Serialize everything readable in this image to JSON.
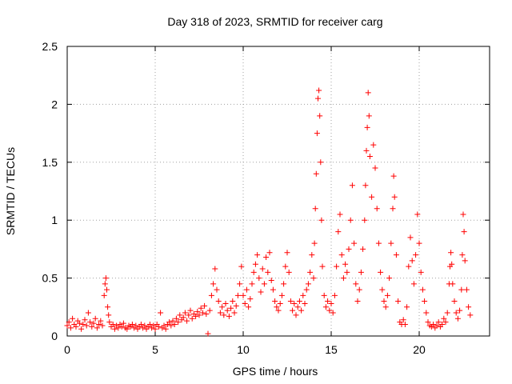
{
  "chart_data": {
    "type": "scatter",
    "title": "Day 318 of 2023, SRMTID for receiver carg",
    "xlabel": "GPS time / hours",
    "ylabel": "SRMTID / TECUs",
    "xlim": [
      0,
      24
    ],
    "ylim": [
      0,
      2.5
    ],
    "xticks": [
      0,
      5,
      10,
      15,
      20
    ],
    "yticks": [
      0,
      0.5,
      1,
      1.5,
      2,
      2.5
    ],
    "xtick_labels": [
      "0",
      "5",
      "10",
      "15",
      "20"
    ],
    "ytick_labels": [
      "0",
      "0.5",
      "1",
      "1.5",
      "2",
      "2.5"
    ],
    "grid": true,
    "marker": "+",
    "color": "#ff0000",
    "series": [
      {
        "name": "carg",
        "points": [
          [
            0.0,
            0.09
          ],
          [
            0.1,
            0.12
          ],
          [
            0.2,
            0.07
          ],
          [
            0.3,
            0.15
          ],
          [
            0.4,
            0.1
          ],
          [
            0.5,
            0.08
          ],
          [
            0.6,
            0.13
          ],
          [
            0.7,
            0.11
          ],
          [
            0.8,
            0.06
          ],
          [
            0.9,
            0.1
          ],
          [
            1.0,
            0.14
          ],
          [
            1.1,
            0.09
          ],
          [
            1.2,
            0.2
          ],
          [
            1.3,
            0.12
          ],
          [
            1.4,
            0.08
          ],
          [
            1.5,
            0.11
          ],
          [
            1.6,
            0.15
          ],
          [
            1.7,
            0.07
          ],
          [
            1.8,
            0.1
          ],
          [
            1.9,
            0.13
          ],
          [
            2.0,
            0.09
          ],
          [
            2.1,
            0.35
          ],
          [
            2.15,
            0.45
          ],
          [
            2.2,
            0.5
          ],
          [
            2.25,
            0.4
          ],
          [
            2.3,
            0.25
          ],
          [
            2.35,
            0.18
          ],
          [
            2.4,
            0.12
          ],
          [
            2.5,
            0.08
          ],
          [
            2.6,
            0.1
          ],
          [
            2.7,
            0.06
          ],
          [
            2.8,
            0.09
          ],
          [
            2.9,
            0.07
          ],
          [
            3.0,
            0.1
          ],
          [
            3.1,
            0.08
          ],
          [
            3.2,
            0.11
          ],
          [
            3.3,
            0.07
          ],
          [
            3.4,
            0.06
          ],
          [
            3.5,
            0.09
          ],
          [
            3.6,
            0.08
          ],
          [
            3.7,
            0.1
          ],
          [
            3.8,
            0.07
          ],
          [
            3.9,
            0.09
          ],
          [
            4.0,
            0.06
          ],
          [
            4.1,
            0.08
          ],
          [
            4.2,
            0.1
          ],
          [
            4.3,
            0.07
          ],
          [
            4.4,
            0.09
          ],
          [
            4.5,
            0.06
          ],
          [
            4.6,
            0.08
          ],
          [
            4.7,
            0.1
          ],
          [
            4.8,
            0.07
          ],
          [
            4.9,
            0.09
          ],
          [
            5.0,
            0.06
          ],
          [
            5.1,
            0.1
          ],
          [
            5.2,
            0.08
          ],
          [
            5.3,
            0.2
          ],
          [
            5.4,
            0.07
          ],
          [
            5.5,
            0.09
          ],
          [
            5.6,
            0.06
          ],
          [
            5.7,
            0.1
          ],
          [
            5.8,
            0.12
          ],
          [
            5.9,
            0.09
          ],
          [
            6.0,
            0.13
          ],
          [
            6.1,
            0.1
          ],
          [
            6.2,
            0.15
          ],
          [
            6.3,
            0.12
          ],
          [
            6.4,
            0.18
          ],
          [
            6.5,
            0.14
          ],
          [
            6.6,
            0.16
          ],
          [
            6.7,
            0.2
          ],
          [
            6.8,
            0.13
          ],
          [
            6.9,
            0.18
          ],
          [
            7.0,
            0.22
          ],
          [
            7.1,
            0.15
          ],
          [
            7.2,
            0.19
          ],
          [
            7.3,
            0.17
          ],
          [
            7.4,
            0.21
          ],
          [
            7.5,
            0.18
          ],
          [
            7.6,
            0.24
          ],
          [
            7.7,
            0.2
          ],
          [
            7.8,
            0.26
          ],
          [
            7.9,
            0.19
          ],
          [
            8.0,
            0.02
          ],
          [
            8.1,
            0.22
          ],
          [
            8.2,
            0.35
          ],
          [
            8.3,
            0.45
          ],
          [
            8.4,
            0.58
          ],
          [
            8.5,
            0.4
          ],
          [
            8.6,
            0.3
          ],
          [
            8.7,
            0.2
          ],
          [
            8.8,
            0.25
          ],
          [
            8.9,
            0.18
          ],
          [
            9.0,
            0.28
          ],
          [
            9.1,
            0.22
          ],
          [
            9.2,
            0.17
          ],
          [
            9.3,
            0.24
          ],
          [
            9.4,
            0.3
          ],
          [
            9.5,
            0.2
          ],
          [
            9.6,
            0.26
          ],
          [
            9.7,
            0.35
          ],
          [
            9.8,
            0.45
          ],
          [
            9.9,
            0.6
          ],
          [
            10.0,
            0.35
          ],
          [
            10.1,
            0.28
          ],
          [
            10.2,
            0.4
          ],
          [
            10.3,
            0.25
          ],
          [
            10.4,
            0.32
          ],
          [
            10.5,
            0.45
          ],
          [
            10.6,
            0.55
          ],
          [
            10.7,
            0.62
          ],
          [
            10.8,
            0.7
          ],
          [
            10.9,
            0.5
          ],
          [
            11.0,
            0.38
          ],
          [
            11.1,
            0.58
          ],
          [
            11.2,
            0.45
          ],
          [
            11.3,
            0.68
          ],
          [
            11.4,
            0.55
          ],
          [
            11.5,
            0.72
          ],
          [
            11.6,
            0.48
          ],
          [
            11.7,
            0.4
          ],
          [
            11.8,
            0.3
          ],
          [
            11.9,
            0.25
          ],
          [
            12.0,
            0.22
          ],
          [
            12.1,
            0.28
          ],
          [
            12.2,
            0.35
          ],
          [
            12.3,
            0.45
          ],
          [
            12.4,
            0.6
          ],
          [
            12.5,
            0.72
          ],
          [
            12.6,
            0.55
          ],
          [
            12.7,
            0.3
          ],
          [
            12.8,
            0.22
          ],
          [
            12.9,
            0.28
          ],
          [
            13.0,
            0.18
          ],
          [
            13.1,
            0.25
          ],
          [
            13.2,
            0.3
          ],
          [
            13.3,
            0.22
          ],
          [
            13.4,
            0.35
          ],
          [
            13.5,
            0.28
          ],
          [
            13.6,
            0.4
          ],
          [
            13.7,
            0.45
          ],
          [
            13.8,
            0.55
          ],
          [
            13.9,
            0.7
          ],
          [
            14.0,
            0.5
          ],
          [
            14.05,
            0.8
          ],
          [
            14.1,
            1.1
          ],
          [
            14.15,
            1.4
          ],
          [
            14.2,
            1.75
          ],
          [
            14.25,
            2.05
          ],
          [
            14.3,
            2.12
          ],
          [
            14.35,
            1.9
          ],
          [
            14.4,
            1.5
          ],
          [
            14.45,
            1.0
          ],
          [
            14.5,
            0.6
          ],
          [
            14.6,
            0.35
          ],
          [
            14.7,
            0.25
          ],
          [
            14.8,
            0.3
          ],
          [
            14.9,
            0.22
          ],
          [
            15.0,
            0.28
          ],
          [
            15.1,
            0.2
          ],
          [
            15.2,
            0.35
          ],
          [
            15.3,
            0.6
          ],
          [
            15.4,
            0.9
          ],
          [
            15.5,
            1.05
          ],
          [
            15.6,
            0.7
          ],
          [
            15.7,
            0.5
          ],
          [
            15.8,
            0.62
          ],
          [
            15.9,
            0.55
          ],
          [
            16.0,
            0.75
          ],
          [
            16.1,
            1.0
          ],
          [
            16.2,
            1.3
          ],
          [
            16.3,
            0.8
          ],
          [
            16.4,
            0.45
          ],
          [
            16.5,
            0.3
          ],
          [
            16.6,
            0.4
          ],
          [
            16.7,
            0.55
          ],
          [
            16.8,
            0.75
          ],
          [
            16.9,
            1.0
          ],
          [
            16.95,
            1.3
          ],
          [
            17.0,
            1.6
          ],
          [
            17.05,
            1.8
          ],
          [
            17.1,
            2.1
          ],
          [
            17.15,
            1.9
          ],
          [
            17.2,
            1.55
          ],
          [
            17.3,
            1.2
          ],
          [
            17.4,
            1.65
          ],
          [
            17.5,
            1.45
          ],
          [
            17.6,
            1.1
          ],
          [
            17.7,
            0.8
          ],
          [
            17.8,
            0.55
          ],
          [
            17.9,
            0.4
          ],
          [
            18.0,
            0.3
          ],
          [
            18.1,
            0.25
          ],
          [
            18.2,
            0.35
          ],
          [
            18.3,
            0.5
          ],
          [
            18.4,
            0.8
          ],
          [
            18.5,
            1.1
          ],
          [
            18.55,
            1.38
          ],
          [
            18.6,
            1.2
          ],
          [
            18.7,
            0.7
          ],
          [
            18.8,
            0.3
          ],
          [
            18.9,
            0.12
          ],
          [
            19.0,
            0.1
          ],
          [
            19.1,
            0.14
          ],
          [
            19.2,
            0.1
          ],
          [
            19.3,
            0.25
          ],
          [
            19.4,
            0.6
          ],
          [
            19.5,
            0.85
          ],
          [
            19.6,
            0.65
          ],
          [
            19.7,
            0.45
          ],
          [
            19.8,
            0.7
          ],
          [
            19.9,
            1.05
          ],
          [
            20.0,
            0.8
          ],
          [
            20.1,
            0.55
          ],
          [
            20.2,
            0.4
          ],
          [
            20.3,
            0.3
          ],
          [
            20.4,
            0.2
          ],
          [
            20.5,
            0.12
          ],
          [
            20.6,
            0.09
          ],
          [
            20.7,
            0.08
          ],
          [
            20.8,
            0.1
          ],
          [
            20.9,
            0.07
          ],
          [
            21.0,
            0.09
          ],
          [
            21.1,
            0.12
          ],
          [
            21.2,
            0.08
          ],
          [
            21.3,
            0.1
          ],
          [
            21.4,
            0.15
          ],
          [
            21.5,
            0.12
          ],
          [
            21.6,
            0.2
          ],
          [
            21.7,
            0.45
          ],
          [
            21.75,
            0.6
          ],
          [
            21.8,
            0.72
          ],
          [
            21.85,
            0.62
          ],
          [
            21.9,
            0.45
          ],
          [
            22.0,
            0.3
          ],
          [
            22.1,
            0.2
          ],
          [
            22.2,
            0.15
          ],
          [
            22.3,
            0.22
          ],
          [
            22.4,
            0.4
          ],
          [
            22.45,
            0.7
          ],
          [
            22.5,
            1.05
          ],
          [
            22.55,
            0.9
          ],
          [
            22.6,
            0.65
          ],
          [
            22.7,
            0.4
          ],
          [
            22.8,
            0.25
          ],
          [
            22.9,
            0.18
          ]
        ]
      }
    ]
  }
}
